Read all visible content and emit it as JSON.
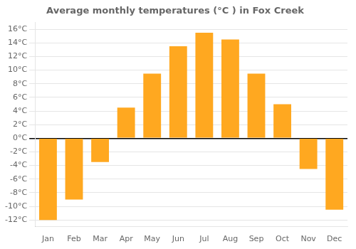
{
  "chart_data": {
    "type": "bar",
    "title": "Average monthly temperatures (°C ) in Fox Creek",
    "categories": [
      "Jan",
      "Feb",
      "Mar",
      "Apr",
      "May",
      "Jun",
      "Jul",
      "Aug",
      "Sep",
      "Oct",
      "Nov",
      "Dec"
    ],
    "values": [
      -12,
      -9,
      -3.5,
      4.5,
      9.5,
      13.5,
      15.5,
      14.5,
      9.5,
      5,
      -4.5,
      -10.5
    ],
    "color": "#FFA820",
    "ylim": [
      -13,
      17
    ],
    "yticks": [
      {
        "value": -12,
        "label": "-12°C"
      },
      {
        "value": -10,
        "label": "-10°C"
      },
      {
        "value": -8,
        "label": "-8°C"
      },
      {
        "value": -6,
        "label": "-6°C"
      },
      {
        "value": -4,
        "label": "-4°C"
      },
      {
        "value": -2,
        "label": "-2°C"
      },
      {
        "value": 0,
        "label": "0°C"
      },
      {
        "value": 2,
        "label": "2°C"
      },
      {
        "value": 4,
        "label": "4°C"
      },
      {
        "value": 6,
        "label": "6°C"
      },
      {
        "value": 8,
        "label": "8°C"
      },
      {
        "value": 10,
        "label": "10°C"
      },
      {
        "value": 12,
        "label": "12°C"
      },
      {
        "value": 14,
        "label": "14°C"
      },
      {
        "value": 16,
        "label": "16°C"
      }
    ],
    "grid": true
  }
}
